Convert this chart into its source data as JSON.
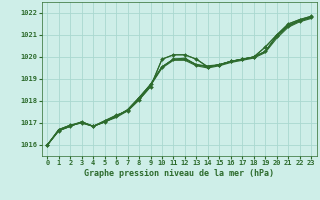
{
  "title": "Graphe pression niveau de la mer (hPa)",
  "background_color": "#ceeee8",
  "grid_color": "#aad8d0",
  "line_color": "#2d6b2d",
  "marker_color": "#2d6b2d",
  "xlim": [
    -0.5,
    23.5
  ],
  "ylim": [
    1015.5,
    1022.5
  ],
  "yticks": [
    1016,
    1017,
    1018,
    1019,
    1020,
    1021,
    1022
  ],
  "xticks": [
    0,
    1,
    2,
    3,
    4,
    5,
    6,
    7,
    8,
    9,
    10,
    11,
    12,
    13,
    14,
    15,
    16,
    17,
    18,
    19,
    20,
    21,
    22,
    23
  ],
  "series": [
    [
      1016.0,
      1016.7,
      1016.9,
      1017.0,
      1016.85,
      1017.1,
      1017.35,
      1017.55,
      1018.05,
      1018.65,
      1019.9,
      1020.1,
      1020.1,
      1019.9,
      1019.55,
      1019.65,
      1019.8,
      1019.9,
      1020.0,
      1020.45,
      1021.0,
      1021.5,
      1021.7,
      1021.85
    ],
    [
      1016.0,
      1016.7,
      1016.9,
      1017.05,
      1016.85,
      1017.05,
      1017.25,
      1017.55,
      1018.1,
      1018.7,
      1019.5,
      1019.85,
      1019.85,
      1019.6,
      1019.5,
      1019.6,
      1019.75,
      1019.85,
      1019.95,
      1020.2,
      1020.85,
      1021.35,
      1021.6,
      1021.75
    ],
    [
      1016.0,
      1016.65,
      1016.85,
      1017.05,
      1016.85,
      1017.05,
      1017.3,
      1017.6,
      1018.15,
      1018.75,
      1019.55,
      1019.9,
      1019.9,
      1019.65,
      1019.55,
      1019.65,
      1019.8,
      1019.9,
      1020.0,
      1020.25,
      1020.95,
      1021.4,
      1021.65,
      1021.8
    ],
    [
      1016.0,
      1016.65,
      1016.85,
      1017.05,
      1016.85,
      1017.05,
      1017.3,
      1017.6,
      1018.15,
      1018.75,
      1019.55,
      1019.9,
      1019.95,
      1019.65,
      1019.6,
      1019.65,
      1019.8,
      1019.9,
      1020.0,
      1020.25,
      1020.95,
      1021.45,
      1021.65,
      1021.8
    ]
  ],
  "marker_series": 0,
  "title_color": "#2d6b2d",
  "title_fontsize": 6.0,
  "tick_fontsize": 5.0,
  "spine_color": "#2d6b2d"
}
